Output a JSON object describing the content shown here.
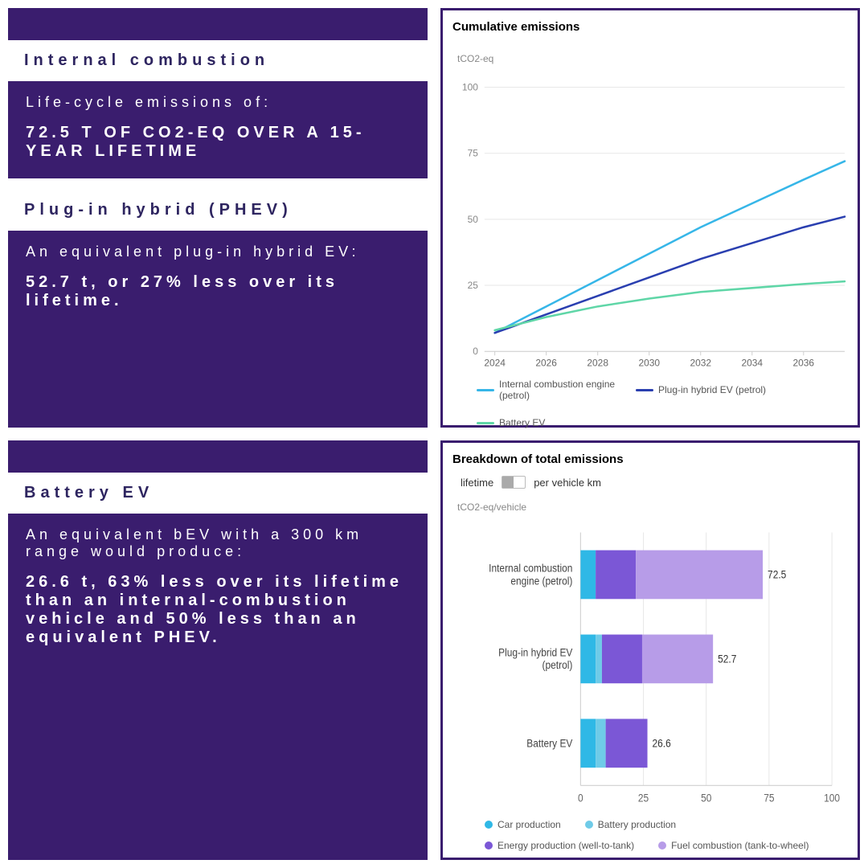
{
  "colors": {
    "brand_dark": "#3a1d6e",
    "brand_header_text": "#2e2560",
    "white": "#ffffff"
  },
  "panels": {
    "ic": {
      "title": "Internal combustion",
      "sub": "Life-cycle emissions of:",
      "stat": "72.5 T OF CO2-EQ OVER A 15-YEAR LIFETIME"
    },
    "phev": {
      "title": "Plug-in hybrid (PHEV)",
      "sub": "An equivalent plug-in hybrid EV:",
      "stat": "52.7 t, or 27% less over its lifetime."
    },
    "bev": {
      "title": "Battery EV",
      "sub": "An equivalent bEV with a 300 km range would produce:",
      "stat": "26.6 t, 63% less over its lifetime than an internal-combustion vehicle and 50% less than an equivalent PHEV."
    }
  },
  "line_chart": {
    "title": "Cumulative emissions",
    "y_label": "tCO2-eq",
    "y_ticks": [
      0,
      25,
      50,
      75,
      100
    ],
    "ylim": [
      0,
      105
    ],
    "x_ticks": [
      2024,
      2026,
      2028,
      2030,
      2032,
      2034,
      2036
    ],
    "xlim": [
      2023.6,
      2037.6
    ],
    "grid_color": "#e7e7e7",
    "axis_color": "#cfcfcf",
    "tick_font_size": 12,
    "series": [
      {
        "name": "Internal combustion engine (petrol)",
        "color": "#36b6e8",
        "points": [
          [
            2024,
            7
          ],
          [
            2026,
            17
          ],
          [
            2028,
            27
          ],
          [
            2030,
            37
          ],
          [
            2032,
            47
          ],
          [
            2034,
            56
          ],
          [
            2036,
            65
          ],
          [
            2037.6,
            72
          ]
        ]
      },
      {
        "name": "Plug-in hybrid EV (petrol)",
        "color": "#2a3fb0",
        "points": [
          [
            2024,
            7
          ],
          [
            2026,
            14
          ],
          [
            2028,
            21
          ],
          [
            2030,
            28
          ],
          [
            2032,
            35
          ],
          [
            2034,
            41
          ],
          [
            2036,
            47
          ],
          [
            2037.6,
            51
          ]
        ]
      },
      {
        "name": "Battery EV",
        "color": "#5fd6a7",
        "points": [
          [
            2024,
            8
          ],
          [
            2026,
            13
          ],
          [
            2028,
            17
          ],
          [
            2030,
            20
          ],
          [
            2032,
            22.5
          ],
          [
            2034,
            24
          ],
          [
            2036,
            25.5
          ],
          [
            2037.6,
            26.5
          ]
        ]
      }
    ]
  },
  "bar_chart": {
    "title": "Breakdown of total emissions",
    "toggle": {
      "left": "lifetime",
      "right": "per vehicle km"
    },
    "y_label": "tCO2-eq/vehicle",
    "x_ticks": [
      0,
      25,
      50,
      75,
      100
    ],
    "xlim": [
      0,
      100
    ],
    "grid_color": "#e7e7e7",
    "axis_color": "#cfcfcf",
    "label_font_size": 12,
    "categories": [
      {
        "label": "Internal combustion engine (petrol)",
        "total": 72.5,
        "segments": [
          {
            "key": "car",
            "value": 6
          },
          {
            "key": "battery",
            "value": 0
          },
          {
            "key": "energy",
            "value": 16
          },
          {
            "key": "fuel",
            "value": 50.5
          }
        ]
      },
      {
        "label": "Plug-in hybrid EV (petrol)",
        "total": 52.7,
        "segments": [
          {
            "key": "car",
            "value": 6
          },
          {
            "key": "battery",
            "value": 2.5
          },
          {
            "key": "energy",
            "value": 16
          },
          {
            "key": "fuel",
            "value": 28.2
          }
        ]
      },
      {
        "label": "Battery EV",
        "total": 26.6,
        "segments": [
          {
            "key": "car",
            "value": 6
          },
          {
            "key": "battery",
            "value": 4
          },
          {
            "key": "energy",
            "value": 16.6
          },
          {
            "key": "fuel",
            "value": 0
          }
        ]
      }
    ],
    "segment_colors": {
      "car": "#2fb8e6",
      "battery": "#6fcbe8",
      "energy": "#7b57d6",
      "fuel": "#b79ce8"
    },
    "legend": [
      {
        "key": "car",
        "label": "Car production"
      },
      {
        "key": "battery",
        "label": "Battery production"
      },
      {
        "key": "energy",
        "label": "Energy production (well-to-tank)"
      },
      {
        "key": "fuel",
        "label": "Fuel combustion (tank-to-wheel)"
      }
    ]
  }
}
